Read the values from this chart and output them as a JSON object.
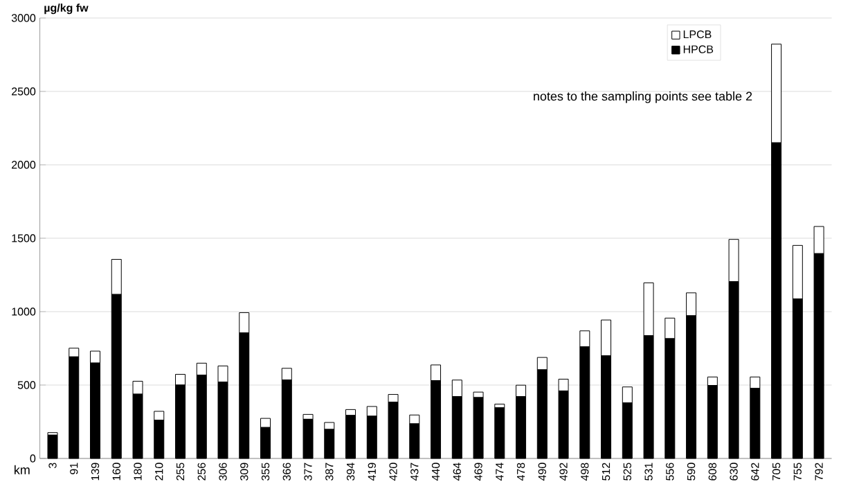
{
  "chart_data": {
    "type": "bar",
    "stacked": true,
    "ylabel": "µg/kg fw",
    "xlabel": "km",
    "categories": [
      "3",
      "91",
      "139",
      "160",
      "180",
      "210",
      "255",
      "256",
      "306",
      "309",
      "355",
      "366",
      "377",
      "387",
      "394",
      "419",
      "420",
      "437",
      "440",
      "464",
      "469",
      "474",
      "478",
      "490",
      "492",
      "498",
      "512",
      "525",
      "531",
      "556",
      "590",
      "608",
      "630",
      "642",
      "705",
      "755",
      "792"
    ],
    "series": [
      {
        "name": "HPCB",
        "color": "#000000",
        "values": [
          159,
          692,
          650,
          1117,
          438,
          260,
          500,
          568,
          520,
          856,
          211,
          535,
          267,
          198,
          293,
          288,
          383,
          236,
          530,
          421,
          415,
          345,
          421,
          604,
          460,
          760,
          699,
          378,
          836,
          816,
          972,
          497,
          1204,
          477,
          2150,
          1087,
          1395
        ]
      },
      {
        "name": "LPCB",
        "color": "#ffffff",
        "values": [
          17,
          59,
          81,
          239,
          88,
          61,
          73,
          81,
          110,
          137,
          62,
          79,
          33,
          47,
          40,
          66,
          53,
          60,
          107,
          113,
          37,
          25,
          78,
          84,
          80,
          109,
          244,
          109,
          360,
          140,
          156,
          58,
          288,
          78,
          672,
          364,
          185
        ]
      }
    ],
    "ylim": [
      0,
      3000
    ],
    "yticks": [
      0,
      500,
      1000,
      1500,
      2000,
      2500,
      3000
    ],
    "grid": "y",
    "legend": "top right",
    "annotations": [
      "notes to the sampling points see table 2"
    ]
  }
}
